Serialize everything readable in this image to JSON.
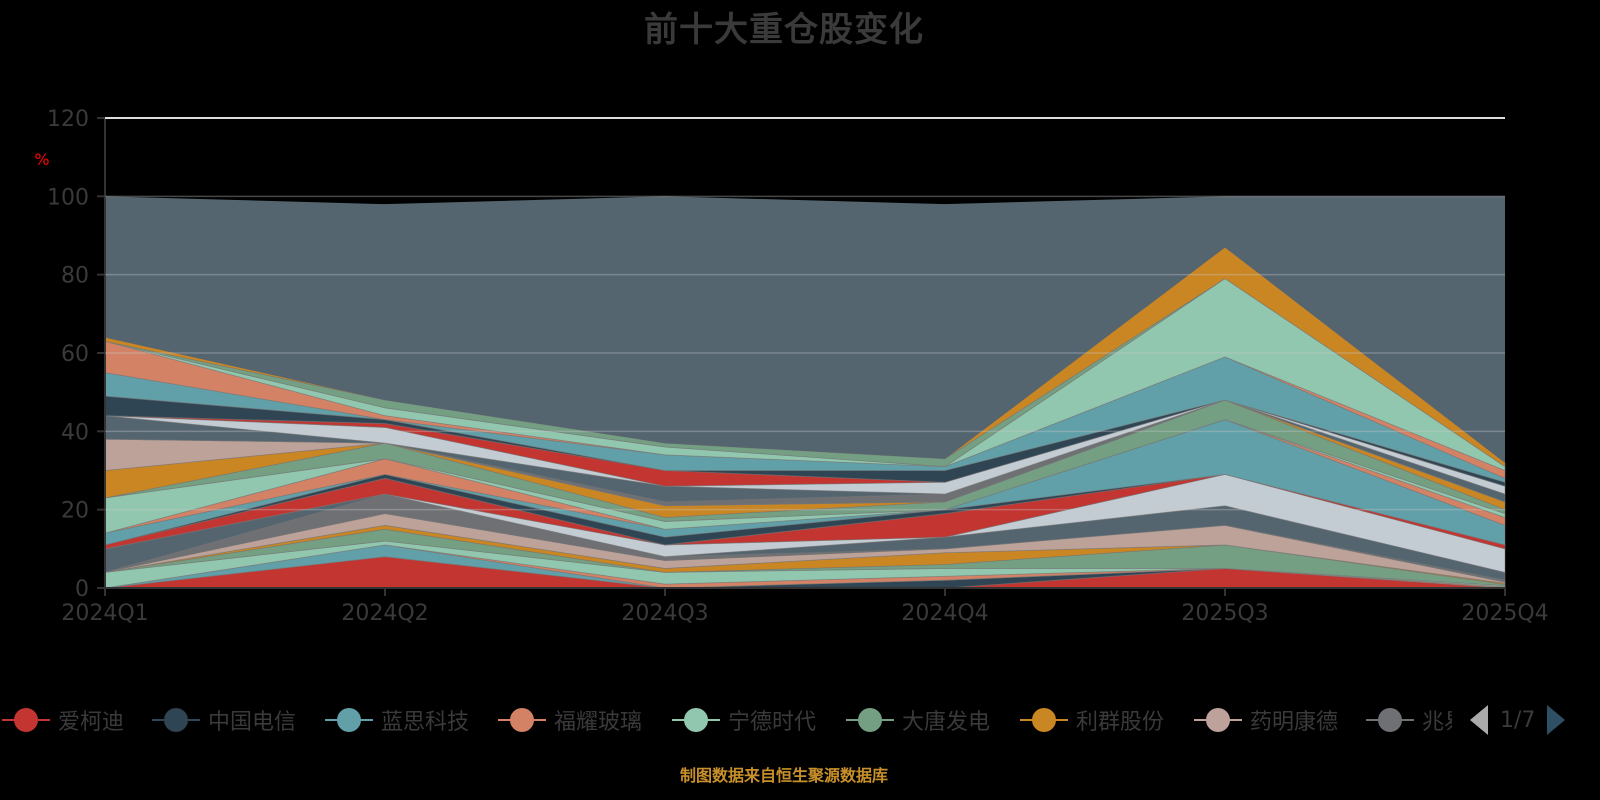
{
  "title": "前十大重仓股变化",
  "footer": "制图数据来自恒生聚源数据库",
  "legend": {
    "items": [
      {
        "label": "爱柯迪",
        "color": "#c23531"
      },
      {
        "label": "中国电信",
        "color": "#2f4554"
      },
      {
        "label": "蓝思科技",
        "color": "#61a0a8"
      },
      {
        "label": "福耀玻璃",
        "color": "#d48265"
      },
      {
        "label": "宁德时代",
        "color": "#91c7ae"
      },
      {
        "label": "大唐发电",
        "color": "#749f83"
      },
      {
        "label": "利群股份",
        "color": "#ca8622"
      },
      {
        "label": "药明康德",
        "color": "#bda29a"
      },
      {
        "label": "兆易",
        "color": "#6e7074"
      }
    ],
    "page_text": "1/7"
  },
  "chart_data": {
    "type": "area",
    "stacked": true,
    "title": "前十大重仓股变化",
    "xlabel": "",
    "ylabel": "%",
    "ylim": [
      0,
      120
    ],
    "yticks": [
      0,
      20,
      40,
      60,
      80,
      100,
      120
    ],
    "grid": true,
    "legend_position": "bottom",
    "categories": [
      "2024Q1",
      "2024Q2",
      "2024Q3",
      "2024Q4",
      "2025Q3",
      "2025Q4"
    ],
    "layer_colors": [
      "#c23531",
      "#2f4554",
      "#61a0a8",
      "#d48265",
      "#91c7ae",
      "#749f83",
      "#ca8622",
      "#bda29a",
      "#6e7074",
      "#546570",
      "#c4ccd3"
    ],
    "boundaries": [
      [
        0,
        0,
        0,
        0,
        0,
        0
      ],
      [
        0,
        8,
        0,
        0,
        5,
        0
      ],
      [
        0,
        8,
        0,
        2,
        5,
        0
      ],
      [
        0,
        11,
        0,
        2,
        5,
        0
      ],
      [
        0,
        11,
        1,
        3,
        5,
        0.3
      ],
      [
        4,
        12,
        4,
        5,
        5,
        0.6
      ],
      [
        4,
        15,
        4,
        6,
        11,
        0.9
      ],
      [
        4,
        16,
        5,
        9,
        11,
        1.2
      ],
      [
        4,
        19,
        7,
        10,
        16,
        1.5
      ],
      [
        4,
        24,
        8,
        10,
        16,
        2
      ],
      [
        10,
        24,
        8,
        13,
        21,
        4
      ],
      [
        10,
        24,
        11,
        13,
        29,
        10
      ],
      [
        11,
        28,
        11,
        19,
        29,
        11
      ],
      [
        11,
        29,
        13,
        20,
        29,
        11
      ],
      [
        14,
        29,
        15,
        20,
        43,
        16
      ],
      [
        14,
        33,
        15,
        20,
        43,
        18
      ],
      [
        23,
        33,
        17,
        20,
        43,
        19
      ],
      [
        23,
        37,
        18,
        22,
        48,
        20
      ],
      [
        30,
        37,
        21,
        22,
        48,
        22
      ],
      [
        38,
        37,
        21,
        22,
        48,
        22
      ],
      [
        38,
        37,
        22,
        24,
        48,
        22
      ],
      [
        44,
        37,
        26,
        24,
        48,
        24
      ],
      [
        44,
        41,
        26,
        27,
        48,
        26
      ],
      [
        44,
        42,
        30,
        27,
        48,
        26
      ],
      [
        49,
        43,
        30,
        30,
        48,
        27
      ],
      [
        55,
        43,
        34,
        31,
        59,
        28
      ],
      [
        63,
        44,
        34,
        31,
        59,
        30
      ],
      [
        63,
        46,
        36,
        31,
        79,
        31
      ],
      [
        63,
        48,
        37,
        33,
        79,
        31
      ],
      [
        64,
        48,
        37,
        33,
        87,
        32
      ],
      [
        100,
        98,
        100,
        98,
        100,
        100
      ]
    ],
    "boundary_note": "cumulative stacked boundaries (%) per quarter, read approximately from gridlines"
  }
}
